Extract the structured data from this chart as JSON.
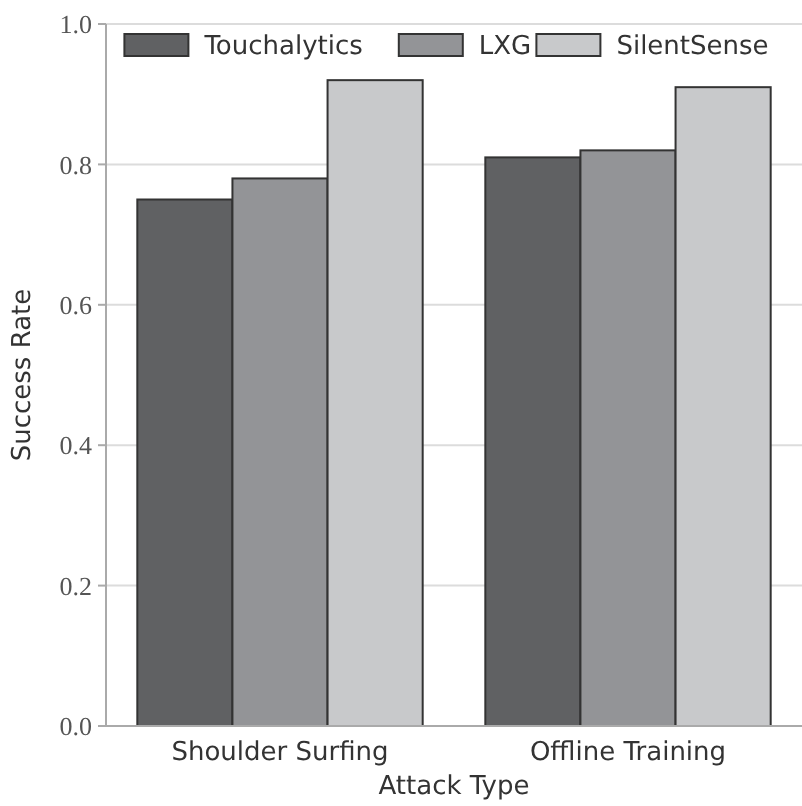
{
  "chart_data": {
    "type": "bar",
    "xlabel": "Attack Type",
    "ylabel": "Success Rate",
    "categories": [
      "Shoulder Surfing",
      "Offline Training"
    ],
    "series": [
      {
        "name": "Touchalytics",
        "color": "#606163",
        "values": [
          0.75,
          0.81
        ]
      },
      {
        "name": "LXG",
        "color": "#939497",
        "values": [
          0.78,
          0.82
        ]
      },
      {
        "name": "SilentSense",
        "color": "#c8c9cb",
        "values": [
          0.92,
          0.91
        ]
      }
    ],
    "ylim": [
      0,
      1
    ],
    "yticks": [
      {
        "value": 0,
        "label": "0.0"
      },
      0.2,
      0.4,
      0.6,
      0.8,
      {
        "value": 1,
        "label": "1.0"
      }
    ],
    "grid": "y",
    "legend": "top"
  }
}
